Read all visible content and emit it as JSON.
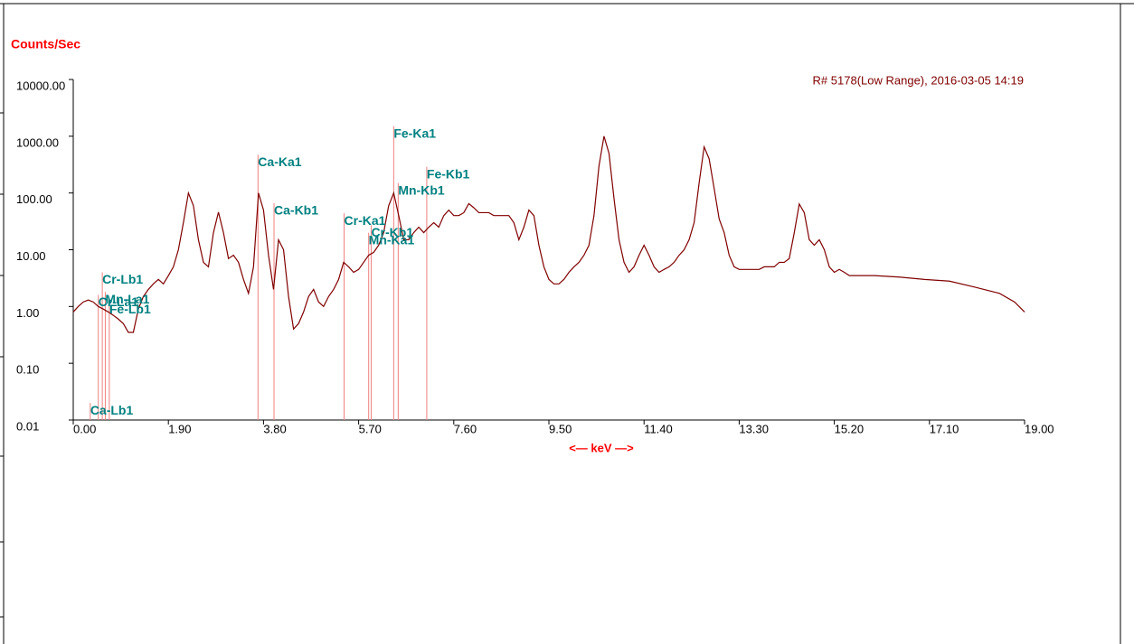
{
  "chart_data": {
    "type": "line",
    "title": "Counts/Sec",
    "annotation": "R# 5178(Low Range), 2016-03-05 14:19",
    "x_label": "<— keV —>",
    "log_y": true,
    "xlim": [
      0,
      19
    ],
    "ylim": [
      0.01,
      10000
    ],
    "xticks": [
      {
        "value": 0,
        "label": "0.00"
      },
      {
        "value": 1.9,
        "label": "1.90"
      },
      {
        "value": 3.8,
        "label": "3.80"
      },
      {
        "value": 5.7,
        "label": "5.70"
      },
      {
        "value": 7.6,
        "label": "7.60"
      },
      {
        "value": 9.5,
        "label": "9.50"
      },
      {
        "value": 11.4,
        "label": "11.40"
      },
      {
        "value": 13.3,
        "label": "13.30"
      },
      {
        "value": 15.2,
        "label": "15.20"
      },
      {
        "value": 17.1,
        "label": "17.10"
      },
      {
        "value": 19,
        "label": "19.00"
      }
    ],
    "yticks": [
      {
        "value": 0.01,
        "label": "0.01"
      },
      {
        "value": 0.1,
        "label": "0.10"
      },
      {
        "value": 1,
        "label": "1.00"
      },
      {
        "value": 10,
        "label": "10.00"
      },
      {
        "value": 100,
        "label": "100.00"
      },
      {
        "value": 1000,
        "label": "1000.00"
      },
      {
        "value": 10000,
        "label": "10000.00"
      }
    ],
    "series": [
      {
        "color": "#800000",
        "x": [
          0,
          0.1,
          0.2,
          0.3,
          0.4,
          0.5,
          0.6,
          0.7,
          0.8,
          0.9,
          1.0,
          1.1,
          1.2,
          1.3,
          1.4,
          1.5,
          1.6,
          1.7,
          1.8,
          1.9,
          2.0,
          2.1,
          2.2,
          2.3,
          2.4,
          2.5,
          2.6,
          2.7,
          2.8,
          2.9,
          3.0,
          3.1,
          3.2,
          3.3,
          3.4,
          3.5,
          3.6,
          3.7,
          3.8,
          3.9,
          4.0,
          4.1,
          4.2,
          4.3,
          4.4,
          4.5,
          4.6,
          4.7,
          4.8,
          4.9,
          5.0,
          5.1,
          5.2,
          5.3,
          5.4,
          5.5,
          5.6,
          5.7,
          5.8,
          5.9,
          6.0,
          6.1,
          6.2,
          6.3,
          6.4,
          6.5,
          6.6,
          6.7,
          6.8,
          6.9,
          7.0,
          7.1,
          7.2,
          7.3,
          7.4,
          7.5,
          7.6,
          7.7,
          7.8,
          7.9,
          8.0,
          8.1,
          8.2,
          8.3,
          8.4,
          8.5,
          8.6,
          8.7,
          8.8,
          8.9,
          9.0,
          9.1,
          9.2,
          9.3,
          9.4,
          9.5,
          9.6,
          9.7,
          9.8,
          9.9,
          10.0,
          10.1,
          10.2,
          10.3,
          10.4,
          10.5,
          10.6,
          10.7,
          10.8,
          10.9,
          11.0,
          11.1,
          11.2,
          11.3,
          11.4,
          11.5,
          11.6,
          11.7,
          11.8,
          11.9,
          12.0,
          12.1,
          12.2,
          12.3,
          12.4,
          12.5,
          12.6,
          12.7,
          12.8,
          12.9,
          13.0,
          13.1,
          13.2,
          13.3,
          13.4,
          13.5,
          13.6,
          13.7,
          13.8,
          13.9,
          14.0,
          14.1,
          14.2,
          14.3,
          14.4,
          14.5,
          14.6,
          14.7,
          14.8,
          14.9,
          15.0,
          15.1,
          15.2,
          15.3,
          15.4,
          15.5,
          15.6,
          16.0,
          16.5,
          17.0,
          17.5,
          18.0,
          18.5,
          18.8,
          19.0
        ],
        "values": [
          0.8,
          1.0,
          1.2,
          1.3,
          1.2,
          1.0,
          0.9,
          0.8,
          0.7,
          0.6,
          0.5,
          0.35,
          0.35,
          0.9,
          1.5,
          2.0,
          2.5,
          3.0,
          2.5,
          3.5,
          5,
          10,
          30,
          100,
          60,
          15,
          6,
          5,
          20,
          46,
          20,
          7,
          8,
          6,
          3,
          1.7,
          5,
          100,
          50,
          8,
          2,
          15,
          10,
          1.5,
          0.4,
          0.5,
          0.8,
          1.5,
          2,
          1.2,
          1,
          1.5,
          2,
          3,
          6,
          5,
          4,
          4.5,
          6,
          8,
          9,
          12,
          20,
          60,
          100,
          40,
          15,
          15,
          20,
          25,
          20,
          25,
          30,
          25,
          40,
          50,
          40,
          40,
          45,
          65,
          55,
          45,
          45,
          45,
          40,
          40,
          40,
          40,
          30,
          15,
          25,
          50,
          40,
          12,
          5,
          3,
          2.5,
          2.5,
          3,
          4,
          5,
          6,
          8,
          12,
          40,
          300,
          1000,
          500,
          80,
          15,
          6,
          4,
          5,
          8,
          12,
          8,
          5,
          4,
          4.5,
          5,
          6,
          8,
          10,
          15,
          30,
          150,
          650,
          400,
          120,
          35,
          20,
          8,
          5,
          4.5,
          4.5,
          4.5,
          4.5,
          4.5,
          5,
          5,
          5,
          6,
          6,
          7,
          20,
          64,
          45,
          15,
          12,
          15,
          10,
          5,
          4,
          4.5,
          4,
          3.5,
          3.5,
          3.5,
          3.3,
          3.0,
          2.8,
          2.2,
          1.7,
          1.2,
          0.8
        ]
      }
    ],
    "marker_color": "#f08080",
    "marker_label_color": "#008080",
    "markers": [
      {
        "label": "Ca-Lb1",
        "energy": 0.34,
        "level": 0.02
      },
      {
        "label": "Cr-La1",
        "energy": 0.5,
        "level": 1.6
      },
      {
        "label": "Cr-Lb1",
        "energy": 0.58,
        "level": 4
      },
      {
        "label": "Mn-La1",
        "energy": 0.64,
        "level": 1.8
      },
      {
        "label": "Fe-Lb1",
        "energy": 0.72,
        "level": 1.2
      },
      {
        "label": "Ca-Ka1",
        "energy": 3.69,
        "level": 470
      },
      {
        "label": "Ca-Kb1",
        "energy": 4.01,
        "level": 66
      },
      {
        "label": "Cr-Ka1",
        "energy": 5.41,
        "level": 44
      },
      {
        "label": "Mn-Ka1",
        "energy": 5.9,
        "level": 20
      },
      {
        "label": "Cr-Kb1",
        "energy": 5.95,
        "level": 27
      },
      {
        "label": "Fe-Ka1",
        "energy": 6.4,
        "level": 1500
      },
      {
        "label": "Mn-Kb1",
        "energy": 6.49,
        "level": 150
      },
      {
        "label": "Fe-Kb1",
        "energy": 7.06,
        "level": 290
      }
    ]
  }
}
